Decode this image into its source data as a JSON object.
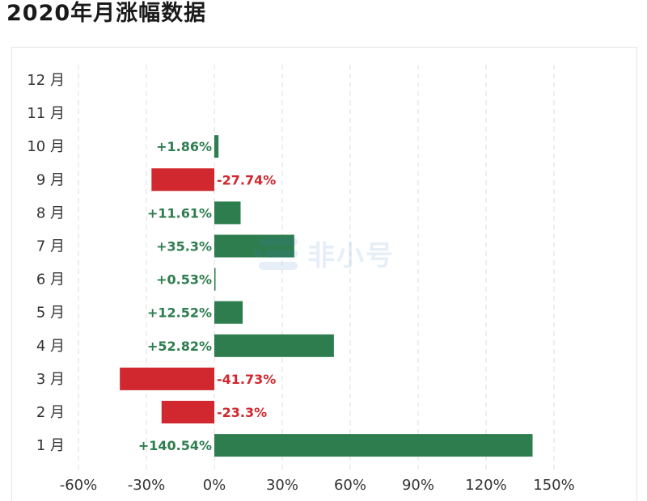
{
  "page": {
    "title": "2020年月涨幅数据",
    "watermark": "非小号"
  },
  "colors": {
    "positive": "#2e7d4f",
    "negative": "#d0282e",
    "grid": "#dddddd",
    "axis_text": "#333333"
  },
  "chart_data": {
    "type": "bar",
    "orientation": "horizontal",
    "categories": [
      "12 月",
      "11 月",
      "10 月",
      "9 月",
      "8 月",
      "7 月",
      "6 月",
      "5 月",
      "4 月",
      "3 月",
      "2 月",
      "1 月"
    ],
    "values": [
      null,
      null,
      1.86,
      -27.74,
      11.61,
      35.3,
      0.53,
      12.52,
      52.82,
      -41.73,
      -23.3,
      140.54
    ],
    "data_labels": [
      "",
      "",
      "+1.86%",
      "-27.74%",
      "+11.61%",
      "+35.3%",
      "+0.53%",
      "+12.52%",
      "+52.82%",
      "-41.73%",
      "-23.3%",
      "+140.54%"
    ],
    "xlim": [
      -60,
      150
    ],
    "x_ticks": [
      -60,
      -30,
      0,
      30,
      60,
      90,
      120,
      150
    ],
    "x_tick_labels": [
      "-60%",
      "-30%",
      "0%",
      "30%",
      "60%",
      "90%",
      "120%",
      "150%"
    ],
    "grid": "vertical dashed",
    "title": "",
    "xlabel": "",
    "ylabel": ""
  }
}
